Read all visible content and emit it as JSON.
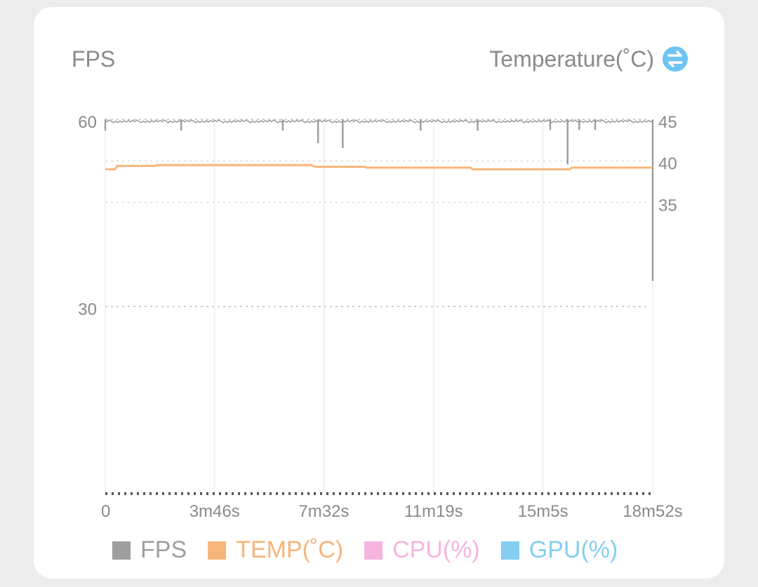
{
  "chart_data": {
    "type": "line",
    "title_left": "FPS",
    "title_right": "Temperature(˚C)",
    "x": {
      "unit": "seconds",
      "range": [
        0,
        1132
      ],
      "ticks": [
        {
          "value": 0,
          "label": "0"
        },
        {
          "value": 226,
          "label": "3m46s"
        },
        {
          "value": 452,
          "label": "7m32s"
        },
        {
          "value": 679,
          "label": "11m19s"
        },
        {
          "value": 905,
          "label": "15m5s"
        },
        {
          "value": 1132,
          "label": "18m52s"
        }
      ]
    },
    "y_left": {
      "range": [
        0,
        60
      ],
      "ticks": [
        {
          "value": 60,
          "label": "60"
        },
        {
          "value": 30,
          "label": "30"
        }
      ]
    },
    "y_right": {
      "range": [
        0,
        45
      ],
      "ticks": [
        {
          "value": 45,
          "label": "45"
        },
        {
          "value": 40,
          "label": "40"
        },
        {
          "value": 35,
          "label": "35"
        }
      ]
    },
    "series": [
      {
        "name": "FPS",
        "color": "#9e9e9e",
        "axis": "left",
        "base": 60,
        "dips": [
          {
            "t": 0,
            "v": 58.2
          },
          {
            "t": 157,
            "v": 58.2
          },
          {
            "t": 367,
            "v": 58.2
          },
          {
            "t": 440,
            "v": 56.2
          },
          {
            "t": 491,
            "v": 55.4
          },
          {
            "t": 652,
            "v": 58.2
          },
          {
            "t": 770,
            "v": 58.2
          },
          {
            "t": 920,
            "v": 58.3
          },
          {
            "t": 956,
            "v": 52.8
          },
          {
            "t": 980,
            "v": 58.3
          },
          {
            "t": 1013,
            "v": 58.3
          },
          {
            "t": 1132,
            "v": 34.1
          }
        ]
      },
      {
        "name": "TEMP(˚C)",
        "color": "#f7b57a",
        "axis": "right",
        "points": [
          [
            0,
            39.0
          ],
          [
            20,
            39.0
          ],
          [
            25,
            39.4
          ],
          [
            100,
            39.4
          ],
          [
            110,
            39.5
          ],
          [
            425,
            39.5
          ],
          [
            435,
            39.3
          ],
          [
            535,
            39.3
          ],
          [
            540,
            39.2
          ],
          [
            755,
            39.2
          ],
          [
            760,
            39.0
          ],
          [
            960,
            39.0
          ],
          [
            965,
            39.2
          ],
          [
            1132,
            39.2
          ]
        ]
      },
      {
        "name": "CPU(%)",
        "color": "#f7b4e0",
        "axis": "none",
        "points": []
      },
      {
        "name": "GPU(%)",
        "color": "#86cdf2",
        "axis": "none",
        "points": []
      }
    ],
    "grid": true,
    "legend_position": "bottom"
  }
}
